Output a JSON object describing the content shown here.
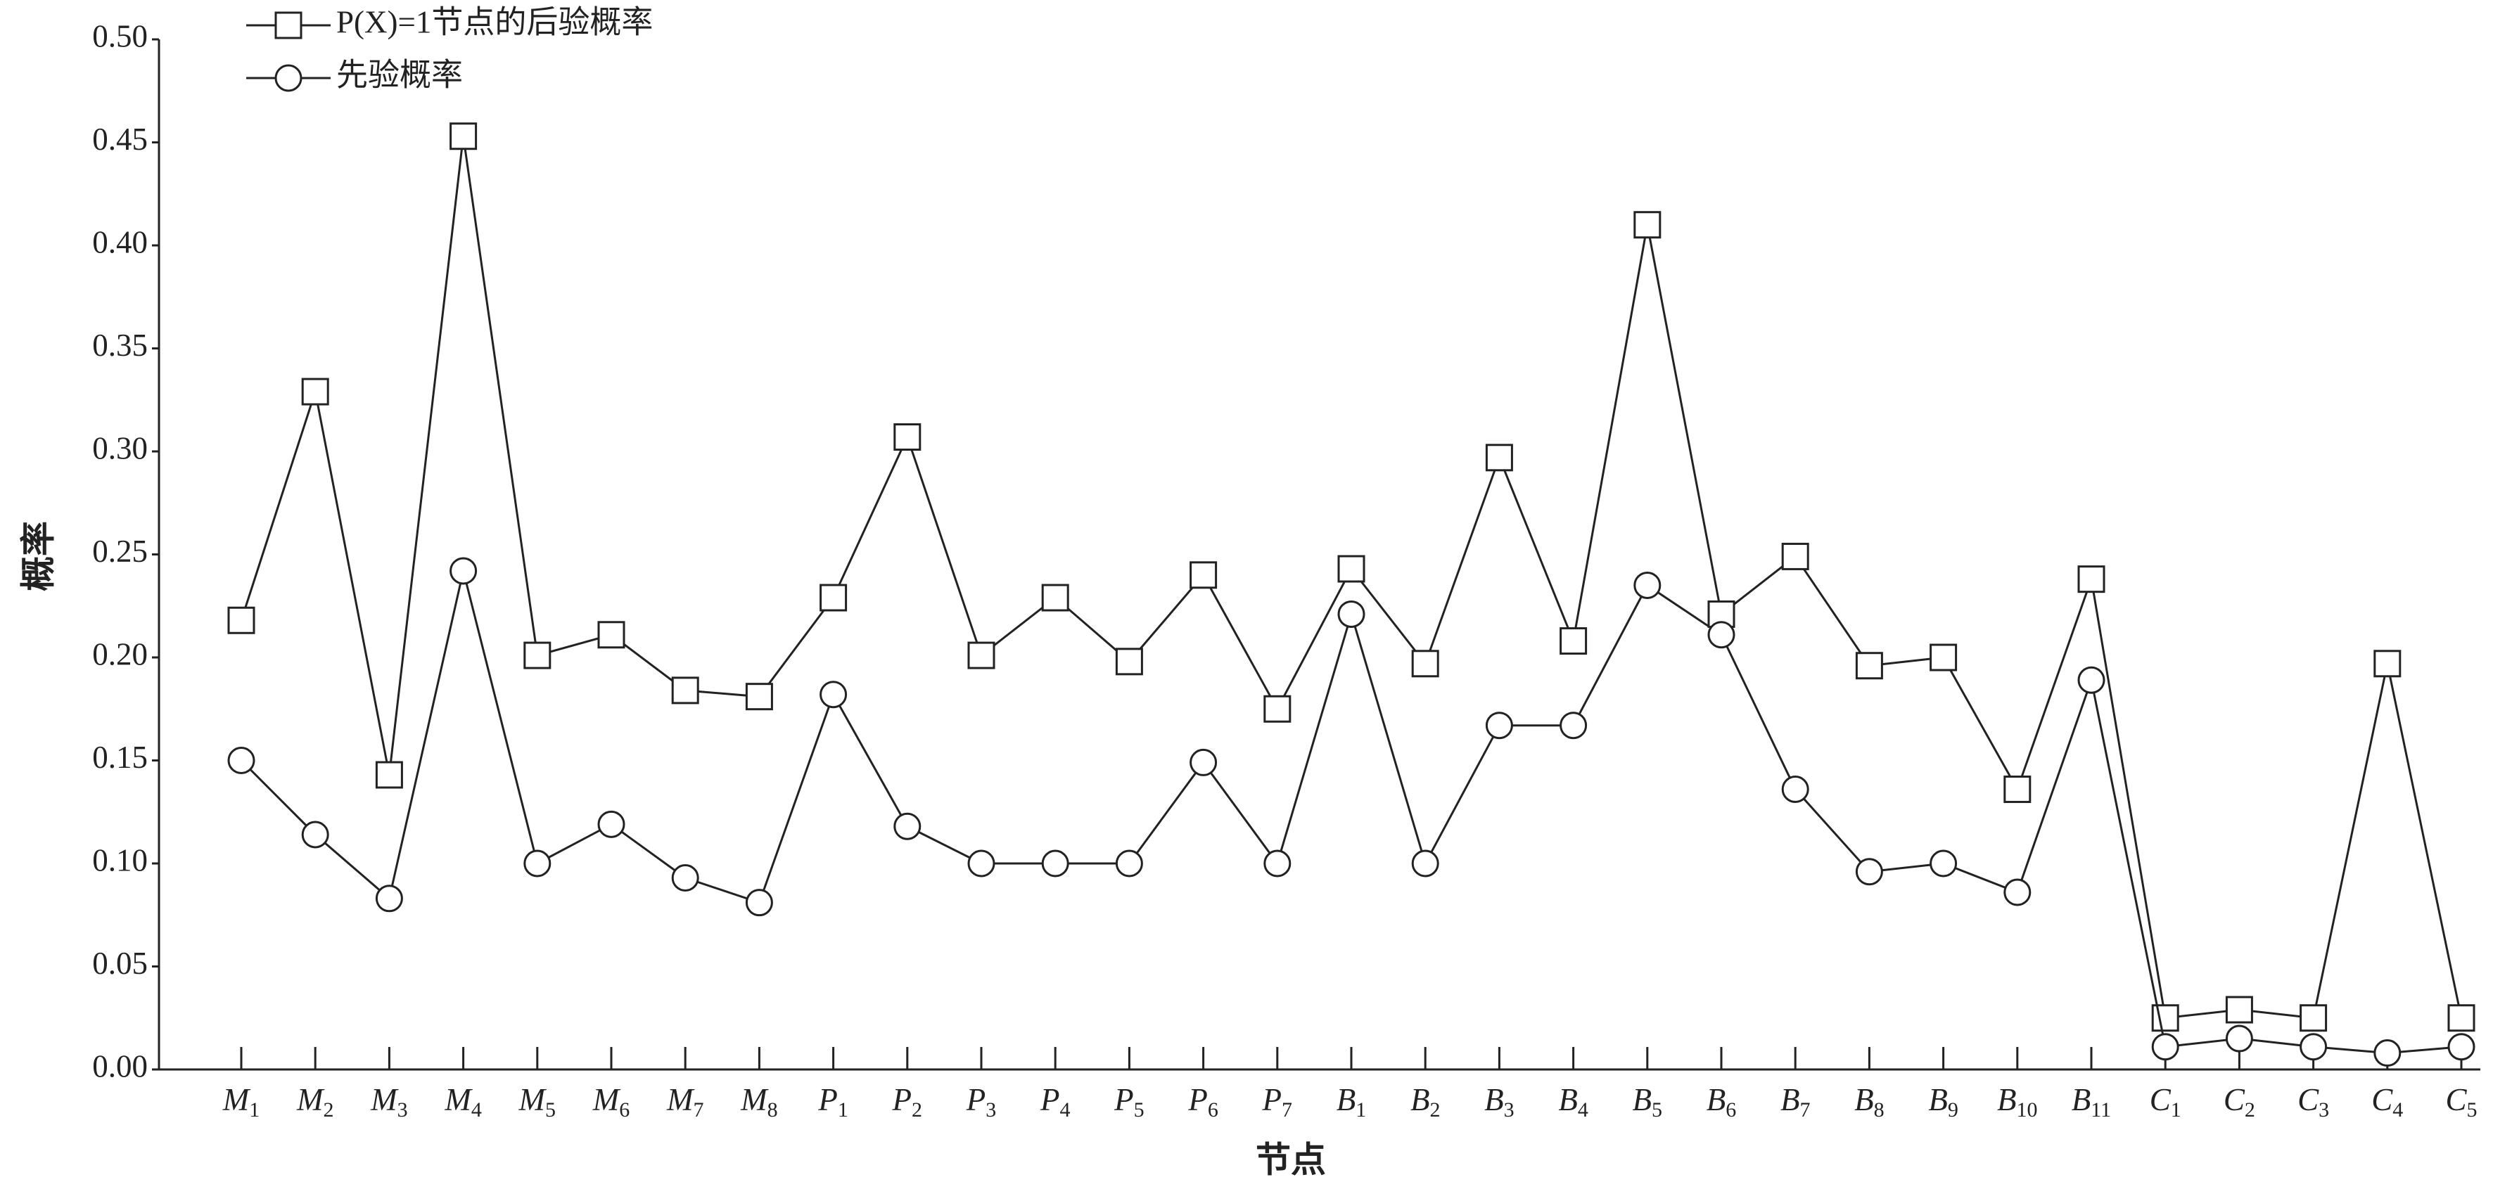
{
  "chart_data": {
    "type": "line",
    "ylabel": "概率",
    "xlabel": "节点",
    "categories": [
      "M1",
      "M2",
      "M3",
      "M4",
      "M5",
      "M6",
      "M7",
      "M8",
      "P1",
      "P2",
      "P3",
      "P4",
      "P5",
      "P6",
      "P7",
      "B1",
      "B2",
      "B3",
      "B4",
      "B5",
      "B6",
      "B7",
      "B8",
      "B9",
      "B10",
      "B11",
      "C1",
      "C2",
      "C3",
      "C4",
      "C5"
    ],
    "series": [
      {
        "name": "P(X)=1节点的后验概率",
        "color": "#222222",
        "marker": "square",
        "values": [
          0.218,
          0.329,
          0.143,
          0.453,
          0.201,
          0.211,
          0.184,
          0.181,
          0.229,
          0.307,
          0.201,
          0.229,
          0.198,
          0.24,
          0.175,
          0.243,
          0.197,
          0.297,
          0.208,
          0.41,
          0.221,
          0.249,
          0.196,
          0.2,
          0.136,
          0.238,
          0.025,
          0.029,
          0.025,
          0.197,
          0.025
        ]
      },
      {
        "name": "先验概率",
        "color": "#222222",
        "marker": "circle",
        "values": [
          0.15,
          0.114,
          0.083,
          0.242,
          0.1,
          0.119,
          0.093,
          0.081,
          0.182,
          0.118,
          0.1,
          0.1,
          0.1,
          0.149,
          0.1,
          0.221,
          0.1,
          0.167,
          0.167,
          0.235,
          0.211,
          0.136,
          0.096,
          0.1,
          0.086,
          0.189,
          0.011,
          0.015,
          0.011,
          0.008,
          0.011
        ]
      }
    ],
    "ylim": [
      0,
      0.5
    ],
    "yticks": [
      {
        "value": 0,
        "label": "0.00"
      },
      {
        "value": 0.05,
        "label": "0.05"
      },
      {
        "value": 0.1,
        "label": "0.10"
      },
      {
        "value": 0.15,
        "label": "0.15"
      },
      {
        "value": 0.2,
        "label": "0.20"
      },
      {
        "value": 0.25,
        "label": "0.25"
      },
      {
        "value": 0.3,
        "label": "0.30"
      },
      {
        "value": 0.35,
        "label": "0.35"
      },
      {
        "value": 0.4,
        "label": "0.40"
      },
      {
        "value": 0.45,
        "label": "0.45"
      },
      {
        "value": 0.5,
        "label": "0.50"
      }
    ],
    "grid": false,
    "legend": "upper left"
  }
}
